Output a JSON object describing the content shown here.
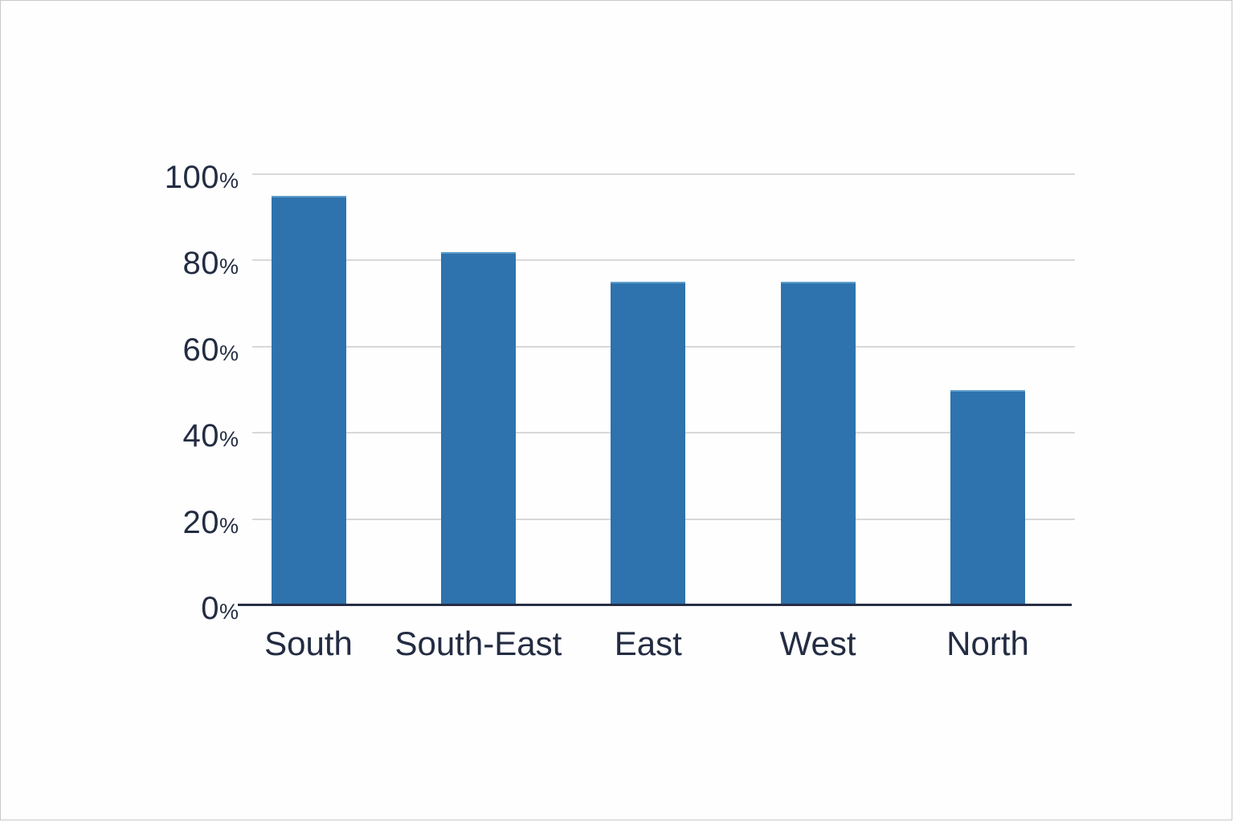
{
  "chart_data": {
    "type": "bar",
    "title": "",
    "categories": [
      "South",
      "South-East",
      "East",
      "West",
      "North"
    ],
    "values": [
      95,
      82,
      75,
      75,
      50
    ],
    "unit": "%",
    "xlabel": "",
    "ylabel": "",
    "ylim": [
      0,
      100
    ],
    "y_ticks": [
      0,
      20,
      40,
      60,
      80,
      100
    ],
    "y_tick_labels": [
      "0%",
      "20%",
      "40%",
      "60%",
      "80%",
      "100%"
    ],
    "grid": "horizontal",
    "legend": "none",
    "colors": {
      "bar": "#2e73ad",
      "bar_top_highlight": "#5e9dcb",
      "gridline": "#d8d8d8",
      "axis_line": "#262e44",
      "tick_label": "#232c42",
      "background": "#fefefe"
    }
  }
}
